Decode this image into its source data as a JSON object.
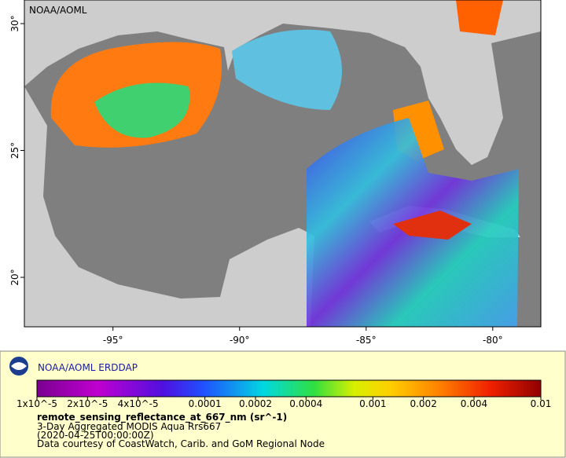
{
  "map": {
    "watermark": "NOAA/AOML",
    "xlim": [
      -98.5,
      -78.1
    ],
    "ylim": [
      18.05,
      30.93
    ],
    "xticks": [
      {
        "value": -95,
        "label": "-95°"
      },
      {
        "value": -90,
        "label": "-90°"
      },
      {
        "value": -85,
        "label": "-85°"
      },
      {
        "value": -80,
        "label": "-80°"
      }
    ],
    "yticks": [
      {
        "value": 20,
        "label": "20°"
      },
      {
        "value": 25,
        "label": "25°"
      },
      {
        "value": 30,
        "label": "30°"
      }
    ]
  },
  "legend": {
    "title": "NOAA/AOML ERDDAP",
    "colorbar": {
      "log": true,
      "lim": [
        1e-05,
        0.01
      ],
      "ticks": [
        {
          "value": 1e-05,
          "label": "1x10^-5"
        },
        {
          "value": 2e-05,
          "label": "2x10^-5"
        },
        {
          "value": 4e-05,
          "label": "4x10^-5"
        },
        0.0001,
        0.0002,
        0.0004,
        0.001,
        0.002,
        0.004,
        0.01
      ]
    },
    "variable": "remote_sensing_reflectance_at_667_nm (sr^-1)",
    "lines": [
      "3-Day Aggregated MODIS Aqua Rrs667",
      "(2020-04-25T00:00:00Z)",
      "Data courtesy of CoastWatch, Carib. and GoM Regional Node"
    ]
  }
}
